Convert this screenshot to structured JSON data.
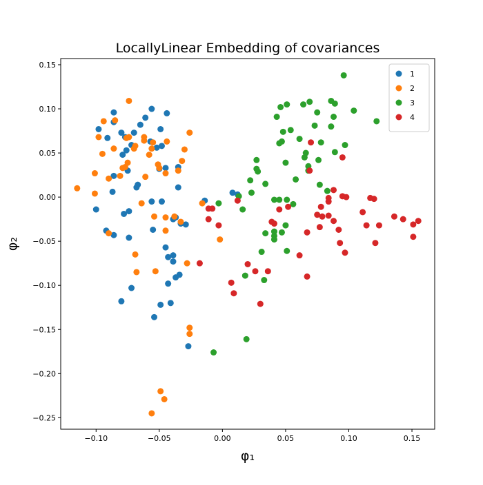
{
  "chart_data": {
    "type": "scatter",
    "title": "LocallyLinear Embedding of covariances",
    "xlabel": "φ₁",
    "ylabel": "φ₂",
    "xlim": [
      -0.128,
      0.168
    ],
    "ylim": [
      -0.263,
      0.157
    ],
    "xticks": [
      {
        "value": -0.1,
        "label": "−0.10"
      },
      {
        "value": -0.05,
        "label": "−0.05"
      },
      {
        "value": 0,
        "label": "0.00"
      },
      {
        "value": 0.05,
        "label": "0.05"
      },
      {
        "value": 0.1,
        "label": "0.10"
      },
      {
        "value": 0.15,
        "label": "0.15"
      }
    ],
    "yticks": [
      {
        "value": -0.25,
        "label": "−0.25"
      },
      {
        "value": -0.2,
        "label": "−0.20"
      },
      {
        "value": -0.15,
        "label": "−0.15"
      },
      {
        "value": -0.1,
        "label": "−0.10"
      },
      {
        "value": -0.05,
        "label": "−0.05"
      },
      {
        "value": 0,
        "label": "0.00"
      },
      {
        "value": 0.05,
        "label": "0.05"
      },
      {
        "value": 0.1,
        "label": "0.10"
      },
      {
        "value": 0.15,
        "label": "0.15"
      }
    ],
    "legend": "upper right",
    "series": [
      {
        "name": "1",
        "color": "#1f77b4",
        "x": [
          -0.098,
          -0.086,
          -0.086,
          -0.08,
          -0.091,
          -0.077,
          -0.07,
          -0.065,
          -0.061,
          -0.056,
          -0.049,
          -0.044,
          -0.048,
          -0.052,
          -0.057,
          -0.05,
          -0.045,
          -0.035,
          -0.079,
          -0.086,
          -0.075,
          -0.076,
          -0.072,
          -0.067,
          -0.068,
          -0.1,
          -0.087,
          -0.092,
          -0.086,
          -0.078,
          -0.074,
          -0.074,
          -0.056,
          -0.048,
          -0.055,
          -0.045,
          -0.039,
          -0.043,
          -0.039,
          -0.034,
          -0.037,
          -0.043,
          -0.029,
          -0.039,
          -0.037,
          -0.033,
          -0.08,
          -0.072,
          -0.049,
          -0.041,
          -0.054,
          -0.027,
          -0.014,
          -0.035,
          0.008,
          0.012
        ],
        "values": [
          0.077,
          0.096,
          0.085,
          0.073,
          0.067,
          0.068,
          0.073,
          0.082,
          0.09,
          0.1,
          0.077,
          0.095,
          0.058,
          0.056,
          0.063,
          0.032,
          0.033,
          0.034,
          0.048,
          0.024,
          0.03,
          0.053,
          0.059,
          0.014,
          0.011,
          -0.014,
          0.006,
          -0.038,
          -0.043,
          -0.019,
          -0.016,
          -0.046,
          -0.005,
          -0.005,
          -0.037,
          -0.057,
          -0.066,
          -0.068,
          -0.073,
          -0.088,
          -0.091,
          -0.098,
          -0.031,
          -0.025,
          -0.023,
          -0.03,
          -0.118,
          -0.103,
          -0.122,
          -0.12,
          -0.136,
          -0.169,
          -0.004,
          0.011,
          0.005,
          0.003
        ]
      },
      {
        "name": "2",
        "color": "#ff7f0e",
        "x": [
          -0.115,
          -0.101,
          -0.101,
          -0.098,
          -0.095,
          -0.094,
          -0.09,
          -0.086,
          -0.085,
          -0.081,
          -0.079,
          -0.077,
          -0.075,
          -0.074,
          -0.076,
          -0.074,
          -0.07,
          -0.069,
          -0.062,
          -0.062,
          -0.058,
          -0.056,
          -0.055,
          -0.061,
          -0.051,
          -0.05,
          -0.044,
          -0.045,
          -0.032,
          -0.03,
          -0.026,
          -0.035,
          -0.09,
          -0.064,
          -0.054,
          -0.045,
          -0.045,
          -0.038,
          -0.033,
          -0.069,
          -0.068,
          -0.053,
          -0.028,
          -0.016,
          -0.002,
          -0.026,
          -0.026,
          -0.049,
          -0.046,
          -0.056
        ],
        "values": [
          0.01,
          0.027,
          0.004,
          0.068,
          0.049,
          0.086,
          0.021,
          0.055,
          0.087,
          0.024,
          0.033,
          0.034,
          0.039,
          0.109,
          0.067,
          0.068,
          0.055,
          0.058,
          0.064,
          0.068,
          0.048,
          0.055,
          0.062,
          0.023,
          0.037,
          0.033,
          0.063,
          0.027,
          0.041,
          0.054,
          0.073,
          0.03,
          -0.041,
          -0.007,
          -0.022,
          -0.023,
          -0.038,
          -0.022,
          -0.028,
          -0.065,
          -0.085,
          -0.084,
          -0.075,
          -0.007,
          -0.048,
          -0.148,
          -0.155,
          -0.22,
          -0.229,
          -0.245
        ]
      },
      {
        "name": "3",
        "color": "#2ca02c",
        "x": [
          0.096,
          0.104,
          0.122,
          0.086,
          0.089,
          0.088,
          0.086,
          0.075,
          0.069,
          0.064,
          0.073,
          0.078,
          0.051,
          0.046,
          0.043,
          0.054,
          0.048,
          0.061,
          0.047,
          0.045,
          0.066,
          0.065,
          0.076,
          0.068,
          0.068,
          0.05,
          0.058,
          0.089,
          0.097,
          0.083,
          0.077,
          0.027,
          0.027,
          0.028,
          0.034,
          0.022,
          0.023,
          0.013,
          -0.003,
          0.016,
          0.041,
          0.045,
          0.051,
          0.056,
          0.05,
          0.047,
          0.041,
          0.034,
          0.041,
          0.041,
          0.051,
          0.031,
          0.018,
          0.033,
          0.019,
          -0.007
        ],
        "values": [
          0.138,
          0.098,
          0.086,
          0.109,
          0.106,
          0.091,
          0.08,
          0.096,
          0.108,
          0.105,
          0.081,
          0.062,
          0.105,
          0.102,
          0.091,
          0.076,
          0.074,
          0.066,
          0.063,
          0.061,
          0.05,
          0.045,
          0.042,
          0.035,
          0.03,
          0.039,
          0.02,
          0.051,
          0.059,
          0.007,
          0.014,
          0.042,
          0.032,
          0.029,
          0.015,
          0.019,
          0.005,
          0.001,
          -0.007,
          -0.014,
          -0.003,
          -0.003,
          -0.003,
          -0.008,
          -0.032,
          -0.04,
          -0.039,
          -0.041,
          -0.044,
          -0.048,
          -0.061,
          -0.062,
          -0.089,
          -0.094,
          -0.161,
          -0.176
        ]
      },
      {
        "name": "4",
        "color": "#d62728",
        "x": [
          0.07,
          0.095,
          0.069,
          0.088,
          0.084,
          0.084,
          0.095,
          0.098,
          0.117,
          0.12,
          0.078,
          0.075,
          0.079,
          0.084,
          0.088,
          0.077,
          0.092,
          0.093,
          0.097,
          0.067,
          0.061,
          0.067,
          0.111,
          0.114,
          0.124,
          0.121,
          0.136,
          0.143,
          0.151,
          0.155,
          0.151,
          0.045,
          0.052,
          0.039,
          0.041,
          0.012,
          -0.011,
          -0.008,
          -0.011,
          -0.003,
          -0.018,
          0.02,
          0.026,
          0.036,
          0.007,
          0.009,
          0.03
        ],
        "values": [
          0.062,
          0.045,
          0.03,
          0.008,
          -0.001,
          -0.005,
          0.001,
          0.0,
          -0.001,
          -0.002,
          -0.011,
          -0.02,
          -0.022,
          -0.021,
          -0.027,
          -0.034,
          -0.037,
          -0.052,
          -0.063,
          -0.04,
          -0.066,
          -0.09,
          -0.017,
          -0.032,
          -0.032,
          -0.052,
          -0.022,
          -0.025,
          -0.031,
          -0.027,
          -0.045,
          -0.014,
          -0.011,
          -0.028,
          -0.03,
          -0.004,
          -0.013,
          -0.013,
          -0.025,
          -0.032,
          -0.075,
          -0.076,
          -0.084,
          -0.084,
          -0.097,
          -0.109,
          -0.121
        ]
      }
    ]
  }
}
